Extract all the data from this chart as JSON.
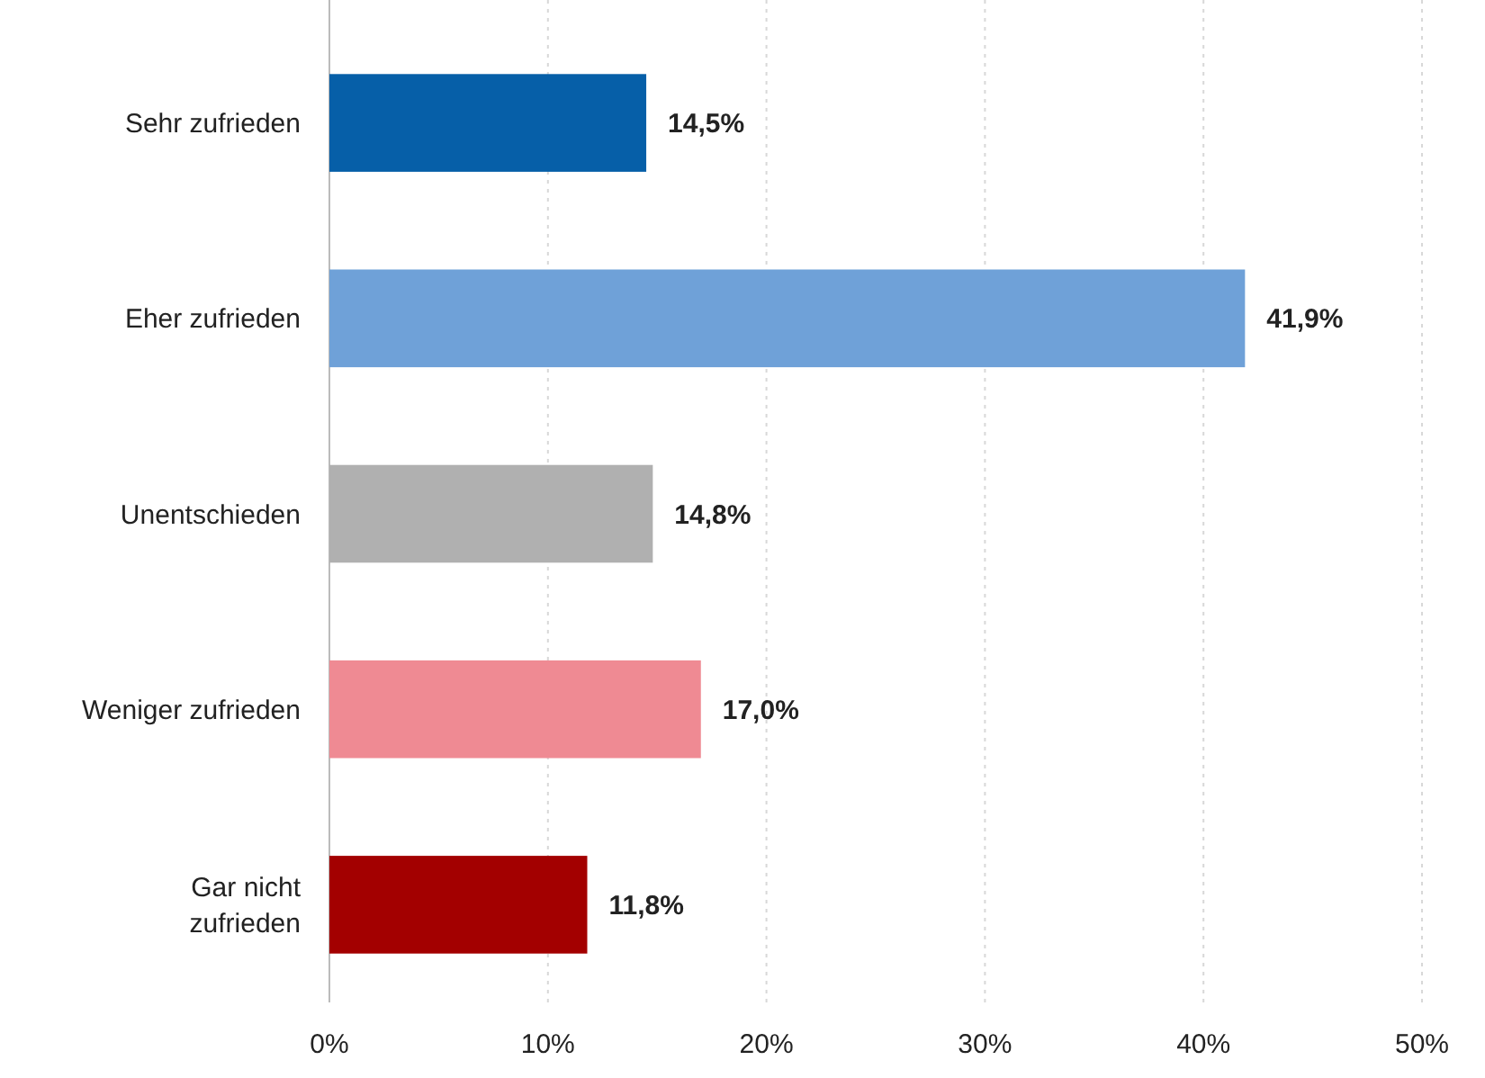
{
  "chart_data": {
    "type": "bar",
    "orientation": "horizontal",
    "categories": [
      "Sehr zufrieden",
      "Eher zufrieden",
      "Unentschieden",
      "Weniger zufrieden",
      "Gar nicht zufrieden"
    ],
    "values": [
      14.5,
      41.9,
      14.8,
      17.0,
      11.8
    ],
    "colors": [
      "#065fa8",
      "#6fa1d8",
      "#b0b0b0",
      "#ef8a93",
      "#a30000"
    ],
    "value_labels": [
      "14,5%",
      "41,9%",
      "14,8%",
      "17,0%",
      "11,8%"
    ],
    "xlim": [
      0,
      50
    ],
    "xticks": [
      {
        "value": 0,
        "label": "0%"
      },
      {
        "value": 10,
        "label": "10%"
      },
      {
        "value": 20,
        "label": "20%"
      },
      {
        "value": 30,
        "label": "30%"
      },
      {
        "value": 40,
        "label": "40%"
      },
      {
        "value": 50,
        "label": "50%"
      }
    ],
    "grid": "x"
  }
}
